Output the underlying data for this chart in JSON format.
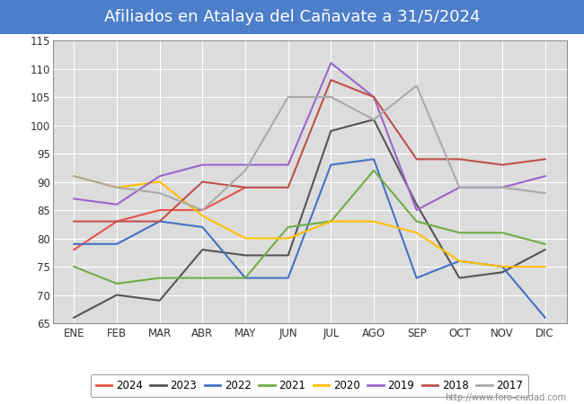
{
  "title": "Afiliados en Atalaya del Cañavate a 31/5/2024",
  "ylim": [
    65,
    115
  ],
  "yticks": [
    65,
    70,
    75,
    80,
    85,
    90,
    95,
    100,
    105,
    110,
    115
  ],
  "months": [
    "ENE",
    "FEB",
    "MAR",
    "ABR",
    "MAY",
    "JUN",
    "JUL",
    "AGO",
    "SEP",
    "OCT",
    "NOV",
    "DIC"
  ],
  "watermark": "http://www.foro-ciudad.com",
  "title_bg": "#4d7ec9",
  "title_fontsize": 13,
  "plot_bg": "#dcdcdc",
  "fig_bg": "#ffffff",
  "grid_color": "#ffffff",
  "border_color": "#333333",
  "series": {
    "2024": {
      "color": "#e8534a",
      "data": [
        78,
        83,
        85,
        85,
        89,
        null,
        null,
        null,
        null,
        null,
        null,
        null
      ]
    },
    "2023": {
      "color": "#555555",
      "data": [
        66,
        70,
        69,
        78,
        77,
        77,
        99,
        101,
        86,
        73,
        74,
        78
      ]
    },
    "2022": {
      "color": "#4472c4",
      "data": [
        79,
        79,
        83,
        82,
        73,
        73,
        93,
        94,
        73,
        76,
        75,
        66
      ]
    },
    "2021": {
      "color": "#70ad47",
      "data": [
        75,
        72,
        73,
        73,
        73,
        82,
        83,
        92,
        83,
        81,
        81,
        79
      ]
    },
    "2020": {
      "color": "#ffc000",
      "data": [
        91,
        89,
        90,
        84,
        80,
        80,
        83,
        83,
        81,
        76,
        75,
        75
      ]
    },
    "2019": {
      "color": "#9966cc",
      "data": [
        87,
        86,
        91,
        93,
        93,
        93,
        111,
        105,
        85,
        89,
        89,
        91
      ]
    },
    "2018": {
      "color": "#c0504d",
      "data": [
        83,
        83,
        83,
        90,
        89,
        89,
        108,
        105,
        94,
        94,
        93,
        94
      ]
    },
    "2017": {
      "color": "#aaaaaa",
      "data": [
        91,
        89,
        88,
        85,
        92,
        105,
        105,
        101,
        107,
        89,
        89,
        88
      ]
    }
  },
  "years_order": [
    "2024",
    "2023",
    "2022",
    "2021",
    "2020",
    "2019",
    "2018",
    "2017"
  ],
  "linewidth": 1.5
}
